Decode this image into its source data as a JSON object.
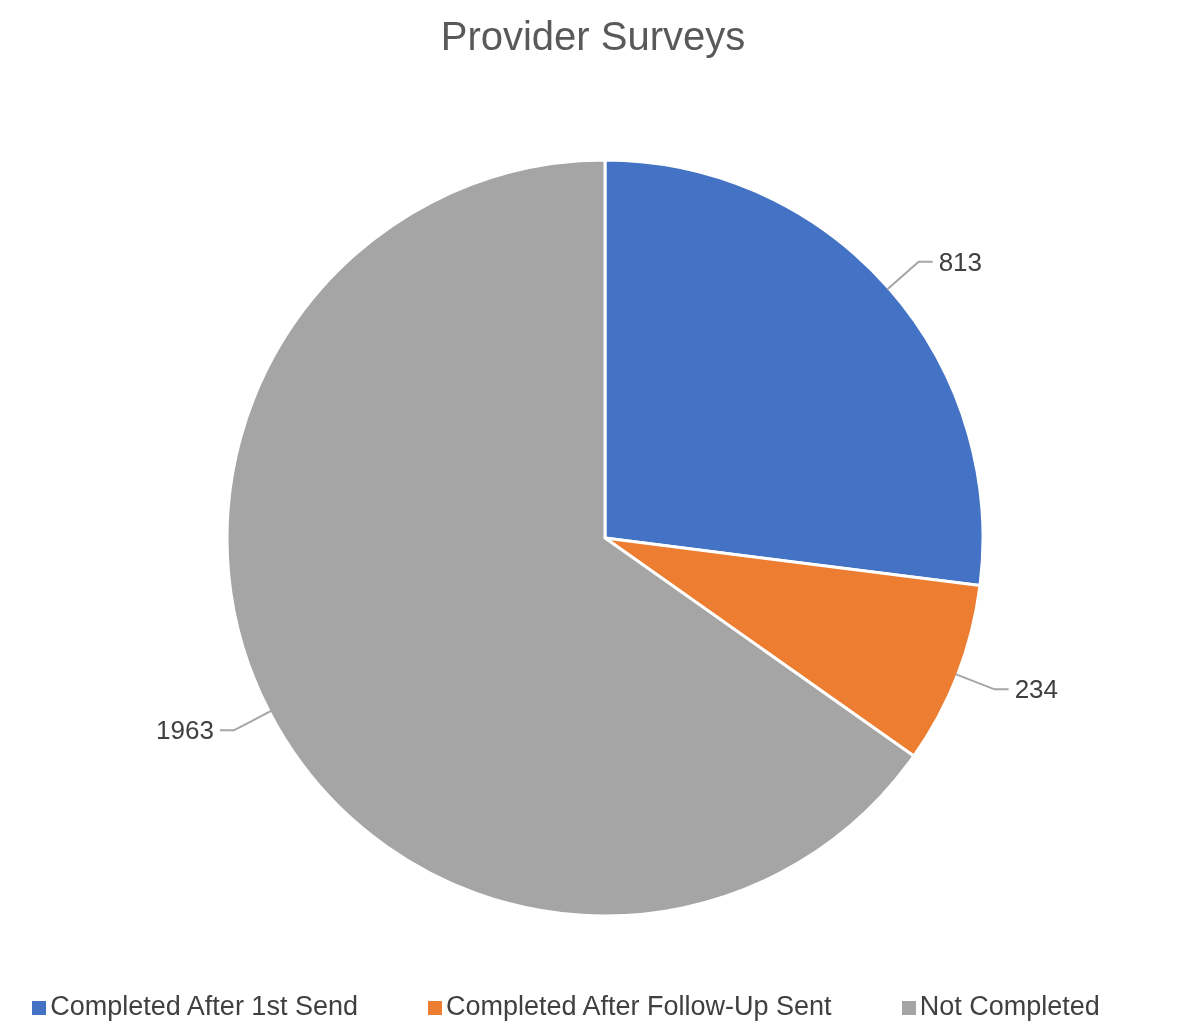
{
  "chart_data": {
    "type": "pie",
    "title": "Provider Surveys",
    "categories": [
      "Completed After 1st Send",
      "Completed After Follow-Up Sent",
      "Not Completed"
    ],
    "values": [
      813,
      234,
      1963
    ],
    "colors": [
      "#4472c4",
      "#ed7d31",
      "#a5a5a5"
    ],
    "data_labels": true,
    "legend": "bottom"
  }
}
